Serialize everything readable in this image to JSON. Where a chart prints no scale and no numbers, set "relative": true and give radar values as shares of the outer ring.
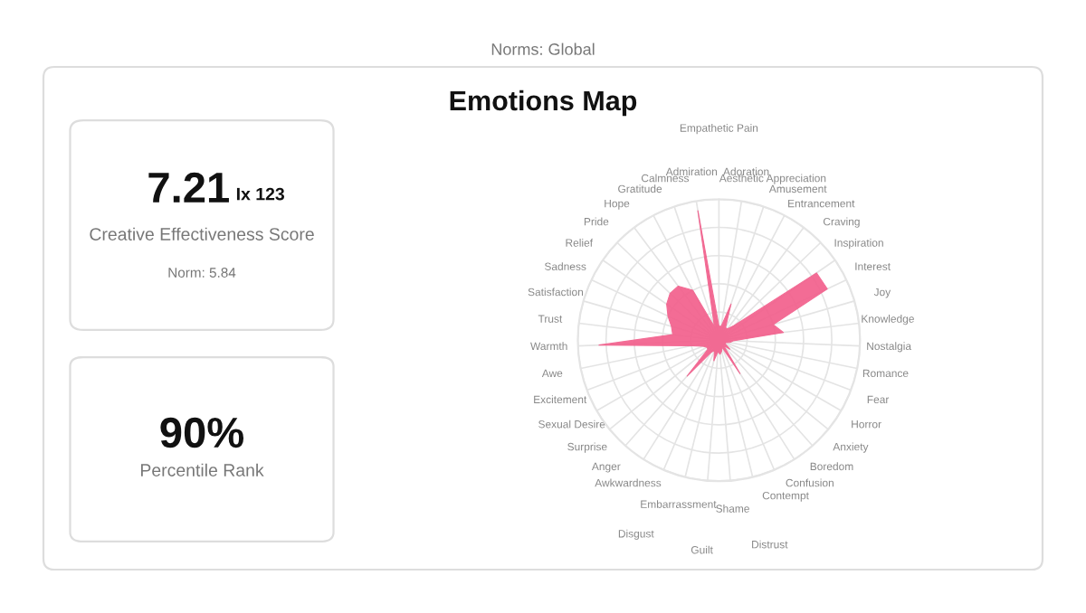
{
  "chart_data": [
    {
      "type": "other",
      "annotations": [
        "7.21",
        "Ix 123",
        "Creative Effectiveness Score",
        "Norm: 5.84"
      ]
    },
    {
      "type": "other",
      "annotations": [
        "90%",
        "Percentile Rank"
      ]
    },
    {
      "type": "radar",
      "title": "Emotions Map",
      "annotations": [
        "Norms: Global"
      ],
      "relative": true,
      "grid": true,
      "categories": [
        "Empathetic Pain",
        "Adoration",
        "Aesthetic Appreciation",
        "Amusement",
        "Entrancement",
        "Craving",
        "Inspiration",
        "Interest",
        "Joy",
        "Knowledge",
        "Nostalgia",
        "Romance",
        "Fear",
        "Horror",
        "Anxiety",
        "Boredom",
        "Confusion",
        "Contempt",
        "Distrust",
        "Shame",
        "Guilt",
        "Embarrassment",
        "Disgust",
        "Awkwardness",
        "Anger",
        "Surprise",
        "Sexual Desire",
        "Excitement",
        "Awe",
        "Warmth",
        "Trust",
        "Satisfaction",
        "Sadness",
        "Relief",
        "Pride",
        "Hope",
        "Gratitude",
        "Calmness",
        "Admiration"
      ],
      "series": [
        {
          "color": "#f25c8a",
          "values": [
            0.1,
            0.1,
            0.27,
            0.1,
            0.1,
            0.15,
            0.84,
            0.85,
            0.4,
            0.46,
            0.1,
            0.08,
            0.05,
            0.05,
            0.1,
            0.05,
            0.28,
            0.05,
            0.08,
            0.1,
            0.08,
            0.15,
            0.08,
            0.1,
            0.34,
            0.1,
            0.1,
            0.12,
            0.2,
            0.85,
            0.33,
            0.35,
            0.4,
            0.45,
            0.48,
            0.48,
            0.4,
            0.1,
            0.93
          ]
        }
      ]
    }
  ]
}
